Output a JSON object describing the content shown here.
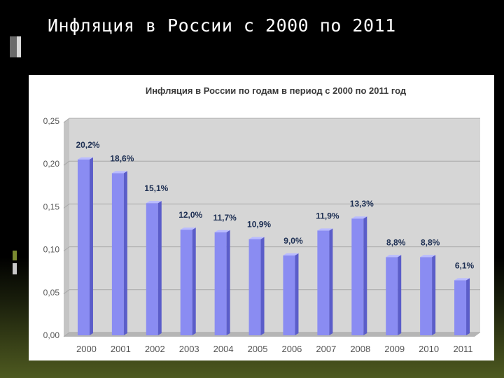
{
  "slide": {
    "title": "Инфляция в России с 2000 по 2011"
  },
  "colors": {
    "bar_front": "#8a8cf2",
    "bar_side": "#5b5dc9",
    "bar_top": "#b9bbff",
    "plot_bg": "#d6d6d6",
    "floor": "#b5b5b5",
    "label_text": "#1c2e52",
    "axis_text": "#555555"
  },
  "chart_data": {
    "type": "bar",
    "title": "Инфляция в России по годам в период с 2000 по 2011 год",
    "xlabel": "",
    "ylabel": "",
    "categories": [
      "2000",
      "2001",
      "2002",
      "2003",
      "2004",
      "2005",
      "2006",
      "2007",
      "2008",
      "2009",
      "2010",
      "2011"
    ],
    "values": [
      0.202,
      0.186,
      0.151,
      0.12,
      0.117,
      0.109,
      0.09,
      0.119,
      0.133,
      0.088,
      0.088,
      0.061
    ],
    "data_labels": [
      "20,2%",
      "18,6%",
      "15,1%",
      "12,0%",
      "11,7%",
      "10,9%",
      "9,0%",
      "11,9%",
      "13,3%",
      "8,8%",
      "8,8%",
      "6,1%"
    ],
    "yticks": [
      "0,00",
      "0,05",
      "0,10",
      "0,15",
      "0,20",
      "0,25"
    ],
    "ylim": [
      0,
      0.25
    ],
    "grid": true,
    "legend": "none"
  }
}
